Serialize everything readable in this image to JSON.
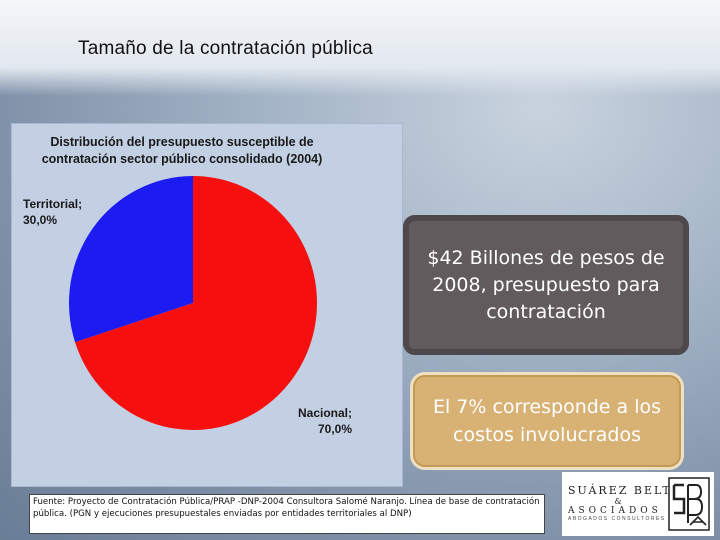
{
  "slide": {
    "title": "Tamaño de la contratación pública"
  },
  "chart_data": {
    "type": "pie",
    "title": "Distribución del presupuesto susceptible de contratación sector público consolidado (2004)",
    "title_lines": [
      "Distribución del presupuesto susceptible de",
      "contratación sector público consolidado (2004)"
    ],
    "categories": [
      "Territorial",
      "Nacional"
    ],
    "values": [
      30.0,
      70.0
    ],
    "value_labels": [
      "30,0%",
      "70,0%"
    ],
    "label_names": [
      "Territorial;",
      "Nacional;"
    ],
    "colors": [
      "#1c1cf2",
      "#f50f0f"
    ],
    "legend": "none"
  },
  "callouts": {
    "budget": "$42 Billones de pesos de 2008, presupuesto para contratación",
    "costs": "El 7% corresponde a los costos involucrados"
  },
  "footer": {
    "source": "Fuente: Proyecto de Contratación Pública/PRAP -DNP-2004 Consultora Salomé Naranjo. Línea de base de contratación pública. (PGN y ejecuciones presupuestales enviadas por entidades territoriales al DNP)"
  },
  "logo": {
    "line1": "SUÁREZ BELTRÁN",
    "amp": "&",
    "line2": "ASOCIADOS",
    "line3": "ABOGADOS CONSULTORES LTDA.",
    "monogram": "SBA"
  }
}
